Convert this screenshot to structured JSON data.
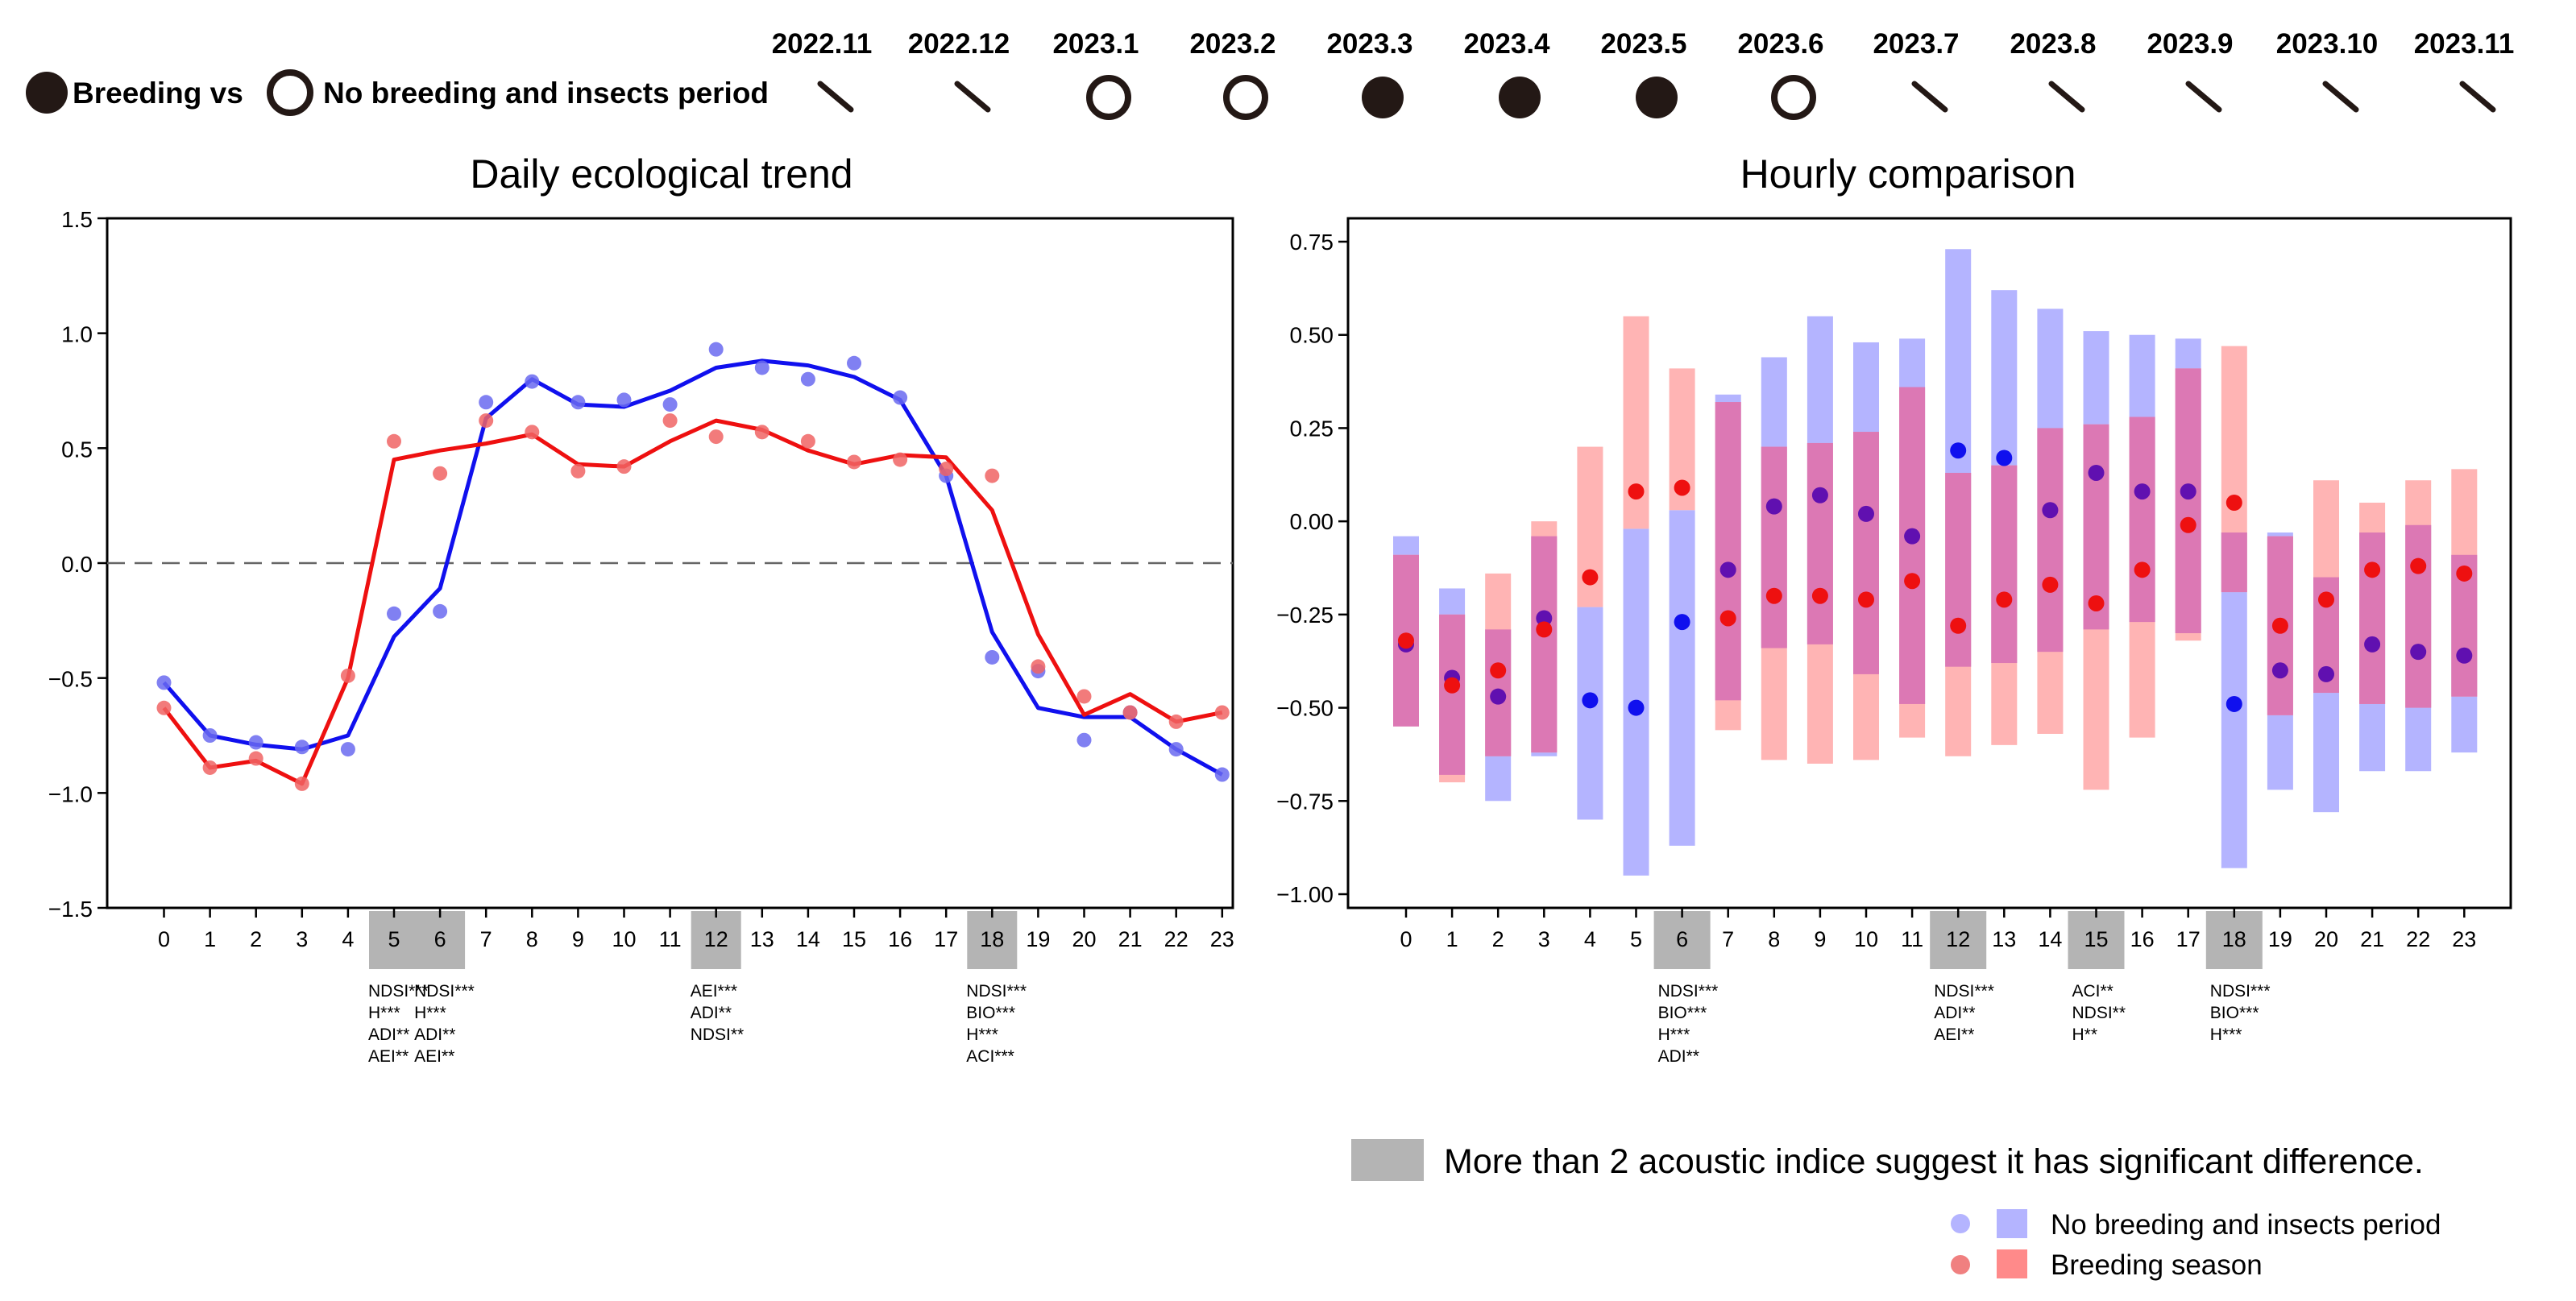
{
  "header": {
    "legend_breeding": "Breeding vs",
    "legend_no_breeding": "No breeding and insects period",
    "months": [
      {
        "label": "2022.11",
        "status": "none"
      },
      {
        "label": "2022.12",
        "status": "none"
      },
      {
        "label": "2023.1",
        "status": "no_breeding"
      },
      {
        "label": "2023.2",
        "status": "no_breeding"
      },
      {
        "label": "2023.3",
        "status": "breeding"
      },
      {
        "label": "2023.4",
        "status": "breeding"
      },
      {
        "label": "2023.5",
        "status": "breeding"
      },
      {
        "label": "2023.6",
        "status": "no_breeding"
      },
      {
        "label": "2023.7",
        "status": "none"
      },
      {
        "label": "2023.8",
        "status": "none"
      },
      {
        "label": "2023.9",
        "status": "none"
      },
      {
        "label": "2023.10",
        "status": "none"
      },
      {
        "label": "2023.11",
        "status": "none"
      }
    ]
  },
  "colors": {
    "blue": "#1010ee",
    "red": "#ee1010",
    "blue_dot": "#6a6af0",
    "red_dot": "#f06464",
    "blue_bar": "#b4b4ff",
    "red_bar": "#ffb4b4",
    "overlap": "#dc78b4",
    "overlap_dot": "#6010b0",
    "highlight": "#b4b4b4"
  },
  "chart_data": [
    {
      "type": "line",
      "title": "Daily ecological trend",
      "xlabel": "",
      "ylabel": "",
      "x": [
        0,
        1,
        2,
        3,
        4,
        5,
        6,
        7,
        8,
        9,
        10,
        11,
        12,
        13,
        14,
        15,
        16,
        17,
        18,
        19,
        20,
        21,
        22,
        23
      ],
      "ylim": [
        -1.5,
        1.5
      ],
      "yticks": [
        "1.5",
        "1.0",
        "0.5",
        "0.0",
        "−0.5",
        "−1.0",
        "−1.5"
      ],
      "ytick_values": [
        1.5,
        1.0,
        0.5,
        0.0,
        -0.5,
        -1.0,
        -1.5
      ],
      "reference_line": 0.0,
      "highlight_hours": [
        5,
        6,
        12,
        18
      ],
      "series": [
        {
          "name": "No breeding and insects period",
          "color": "blue",
          "points": [
            -0.52,
            -0.75,
            -0.78,
            -0.8,
            -0.81,
            -0.22,
            -0.21,
            0.7,
            0.79,
            0.7,
            0.71,
            0.69,
            0.93,
            0.85,
            0.8,
            0.87,
            0.72,
            0.38,
            -0.41,
            -0.47,
            -0.77,
            -0.65,
            -0.81,
            -0.92
          ],
          "trend": [
            -0.52,
            -0.75,
            -0.79,
            -0.81,
            -0.75,
            -0.32,
            -0.11,
            0.63,
            0.8,
            0.69,
            0.68,
            0.75,
            0.85,
            0.88,
            0.86,
            0.81,
            0.71,
            0.38,
            -0.3,
            -0.63,
            -0.67,
            -0.67,
            -0.81,
            -0.92
          ]
        },
        {
          "name": "Breeding season",
          "color": "red",
          "points": [
            -0.63,
            -0.89,
            -0.85,
            -0.96,
            -0.49,
            0.53,
            0.39,
            0.62,
            0.57,
            0.4,
            0.42,
            0.62,
            0.55,
            0.57,
            0.53,
            0.44,
            0.45,
            0.41,
            0.38,
            -0.45,
            -0.58,
            -0.65,
            -0.69,
            -0.65
          ],
          "trend": [
            -0.63,
            -0.89,
            -0.86,
            -0.96,
            -0.5,
            0.45,
            0.49,
            0.52,
            0.56,
            0.43,
            0.42,
            0.53,
            0.62,
            0.58,
            0.49,
            0.43,
            0.47,
            0.46,
            0.23,
            -0.31,
            -0.66,
            -0.57,
            -0.69,
            -0.65
          ]
        }
      ],
      "annotations": [
        {
          "hour": 5,
          "lines": [
            "NDSI***",
            "H***",
            "ADI**",
            "AEI**"
          ]
        },
        {
          "hour": 6,
          "lines": [
            "NDSI***",
            "H***",
            "ADI**",
            "AEI**"
          ]
        },
        {
          "hour": 12,
          "lines": [
            "AEI***",
            "ADI**",
            "NDSI**"
          ]
        },
        {
          "hour": 18,
          "lines": [
            "NDSI***",
            "BIO***",
            "H***",
            "ACI***"
          ]
        }
      ]
    },
    {
      "type": "bar",
      "title": "Hourly comparison",
      "x": [
        0,
        1,
        2,
        3,
        4,
        5,
        6,
        7,
        8,
        9,
        10,
        11,
        12,
        13,
        14,
        15,
        16,
        17,
        18,
        19,
        20,
        21,
        22,
        23
      ],
      "ylim": [
        -1.0,
        0.75
      ],
      "yticks": [
        "0.75",
        "0.50",
        "0.25",
        "0.00",
        "−0.25",
        "−0.50",
        "−0.75",
        "−1.00"
      ],
      "ytick_values": [
        0.75,
        0.5,
        0.25,
        0.0,
        -0.25,
        -0.5,
        -0.75,
        -1.0
      ],
      "highlight_hours": [
        6,
        12,
        15,
        18
      ],
      "series": [
        {
          "name": "No breeding and insects period",
          "color": "blue",
          "low": [
            -0.55,
            -0.68,
            -0.75,
            -0.63,
            -0.8,
            -0.95,
            -0.87,
            -0.48,
            -0.34,
            -0.33,
            -0.41,
            -0.49,
            -0.39,
            -0.38,
            -0.35,
            -0.29,
            -0.27,
            -0.3,
            -0.93,
            -0.72,
            -0.78,
            -0.67,
            -0.67,
            -0.62
          ],
          "high": [
            -0.04,
            -0.18,
            -0.29,
            -0.04,
            -0.23,
            -0.02,
            0.03,
            0.34,
            0.44,
            0.55,
            0.48,
            0.49,
            0.73,
            0.62,
            0.57,
            0.51,
            0.5,
            0.49,
            -0.03,
            -0.03,
            -0.15,
            -0.03,
            -0.01,
            -0.09
          ],
          "mean": [
            -0.33,
            -0.42,
            -0.47,
            -0.26,
            -0.48,
            -0.5,
            -0.27,
            -0.13,
            0.04,
            0.07,
            0.02,
            -0.04,
            0.19,
            0.17,
            0.03,
            0.13,
            0.08,
            0.08,
            -0.49,
            -0.4,
            -0.41,
            -0.33,
            -0.35,
            -0.36
          ]
        },
        {
          "name": "Breeding season",
          "color": "red",
          "low": [
            -0.55,
            -0.7,
            -0.63,
            -0.62,
            -0.23,
            -0.02,
            0.03,
            -0.56,
            -0.64,
            -0.65,
            -0.64,
            -0.58,
            -0.63,
            -0.6,
            -0.57,
            -0.72,
            -0.58,
            -0.32,
            -0.19,
            -0.52,
            -0.46,
            -0.49,
            -0.5,
            -0.47
          ],
          "high": [
            -0.09,
            -0.25,
            -0.14,
            0.0,
            0.2,
            0.55,
            0.41,
            0.32,
            0.2,
            0.21,
            0.24,
            0.36,
            0.13,
            0.15,
            0.25,
            0.26,
            0.28,
            0.41,
            0.47,
            -0.04,
            0.11,
            0.05,
            0.11,
            0.14
          ],
          "mean": [
            -0.32,
            -0.44,
            -0.4,
            -0.29,
            -0.15,
            0.08,
            0.09,
            -0.26,
            -0.2,
            -0.2,
            -0.21,
            -0.16,
            -0.28,
            -0.21,
            -0.17,
            -0.22,
            -0.13,
            -0.01,
            0.05,
            -0.28,
            -0.21,
            -0.13,
            -0.12,
            -0.14
          ]
        }
      ],
      "annotations": [
        {
          "hour": 6,
          "lines": [
            "NDSI***",
            "BIO***",
            "H***",
            "ADI**"
          ]
        },
        {
          "hour": 12,
          "lines": [
            "NDSI***",
            "ADI**",
            "AEI**"
          ]
        },
        {
          "hour": 15,
          "lines": [
            "ACI**",
            "NDSI**",
            "H**"
          ]
        },
        {
          "hour": 18,
          "lines": [
            "NDSI***",
            "BIO***",
            "H***"
          ]
        }
      ]
    }
  ],
  "bottom_legend": {
    "significance": "More than 2 acoustic indice suggest it has significant difference.",
    "no_breeding": "No breeding and insects period",
    "breeding": "Breeding season"
  }
}
